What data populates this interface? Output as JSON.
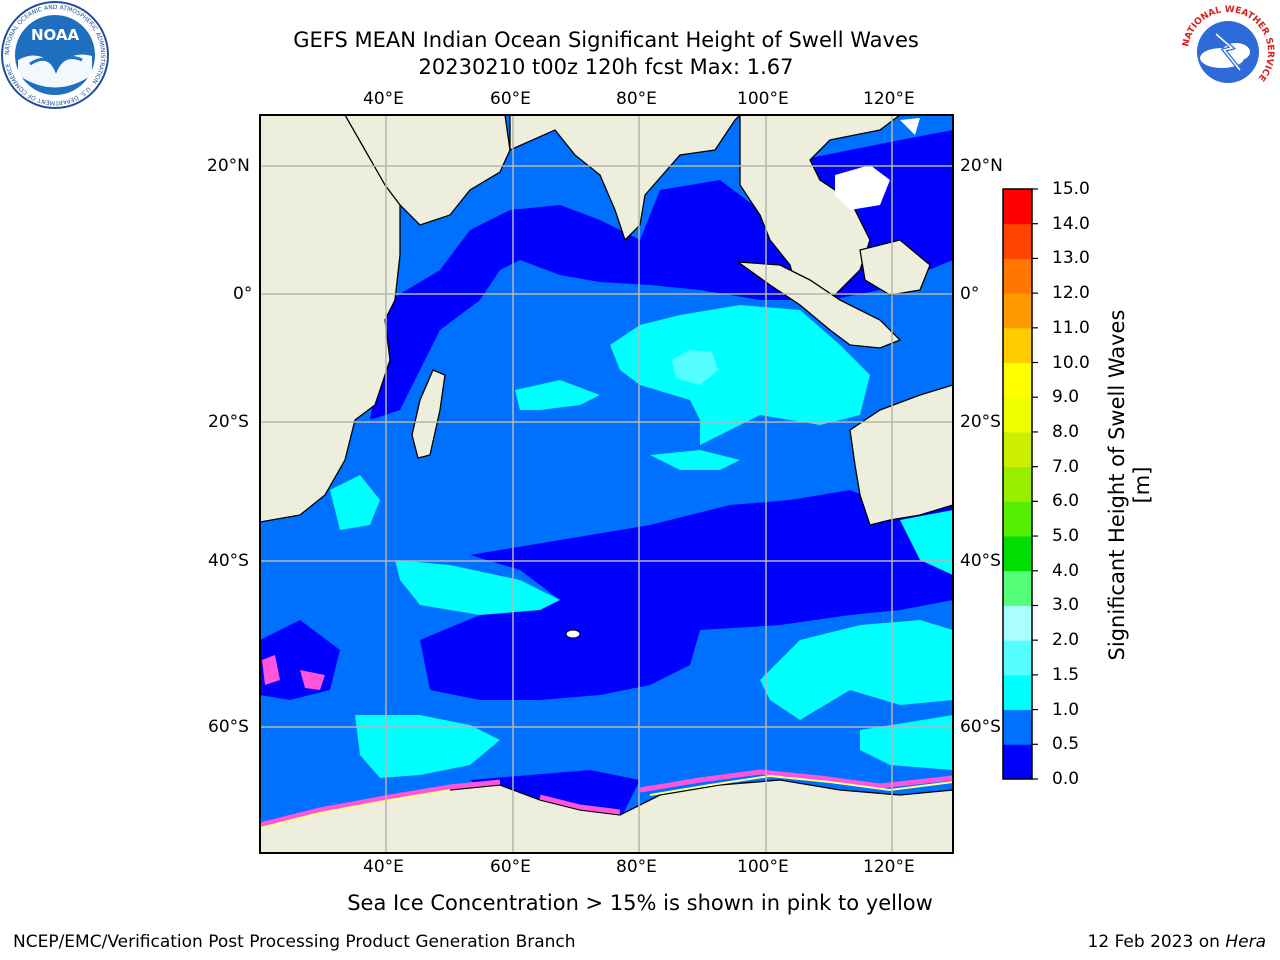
{
  "title_line1": "GEFS MEAN Indian Ocean Significant Height of Swell Waves",
  "title_line2": "20230210 t00z 120h fcst   Max: 1.67",
  "caption": "Sea Ice Concentration > 15% is shown in pink to yellow",
  "footer_left": "NCEP/EMC/Verification Post Processing Product Generation Branch",
  "footer_right_date": "12 Feb 2023 on",
  "footer_right_machine": "Hera",
  "logos": {
    "noaa_text": "NOAA",
    "noaa_ring_text": "NATIONAL OCEANIC AND ATMOSPHERIC ADMINISTRATION · U.S. DEPARTMENT OF COMMERCE",
    "nws_ring_text": "NATIONAL WEATHER SERVICE"
  },
  "map": {
    "lon_ticks": [
      "40°E",
      "60°E",
      "80°E",
      "100°E",
      "120°E"
    ],
    "lat_ticks_left": [
      "20°N",
      "0°",
      "20°S",
      "40°S",
      "60°S"
    ],
    "lat_ticks_right": [
      "20°N",
      "0°",
      "20°S",
      "40°S",
      "60°S"
    ],
    "lon_range": [
      20,
      130
    ],
    "lat_range": [
      -75,
      28
    ],
    "gridlines": true,
    "colors": {
      "land": "#eeeedd",
      "ice_edge_pink": "#ff55dd",
      "ice_yellow": "#ffff88"
    }
  },
  "colorbar": {
    "label": "Significant Height of Swell Waves [m]",
    "tick_labels": [
      "0.0",
      "0.5",
      "1.0",
      "1.5",
      "2.0",
      "3.0",
      "4.0",
      "5.0",
      "6.0",
      "7.0",
      "8.0",
      "9.0",
      "10.0",
      "11.0",
      "12.0",
      "13.0",
      "14.0",
      "15.0"
    ],
    "colors": [
      "#0000ff",
      "#0070ff",
      "#00ffff",
      "#55ffff",
      "#aaffff",
      "#55ff77",
      "#00dd00",
      "#55ee00",
      "#99ee00",
      "#ccee00",
      "#eeff00",
      "#ffff00",
      "#ffcc00",
      "#ff9900",
      "#ff7700",
      "#ff4400",
      "#ff0000"
    ]
  }
}
